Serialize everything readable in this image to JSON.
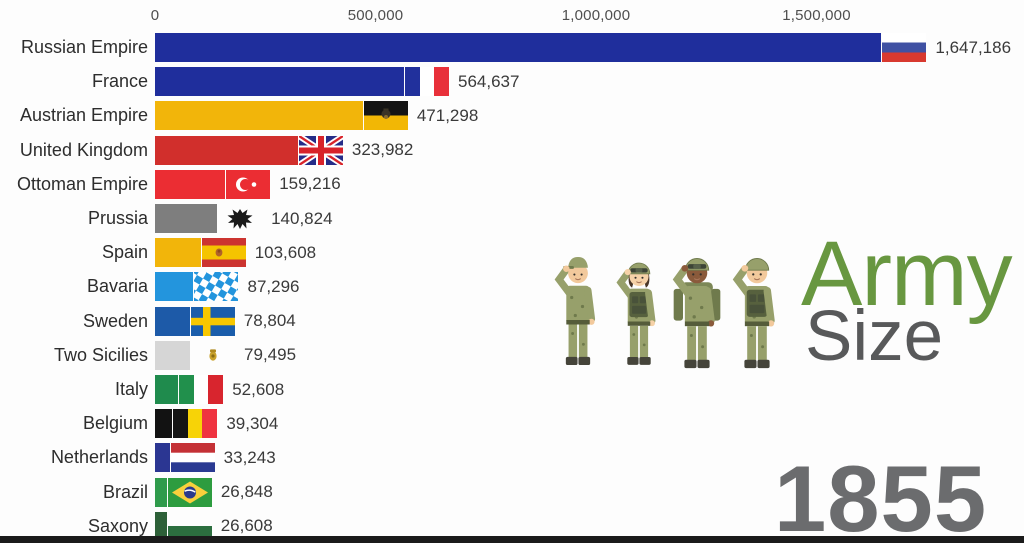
{
  "chart_data": {
    "type": "bar",
    "orientation": "horizontal",
    "title": "Army Size",
    "year": "1855",
    "grid": false,
    "legend": false,
    "x_axis": {
      "tick_values": [
        0,
        500000,
        1000000,
        1500000
      ],
      "tick_labels": [
        "0",
        "500,000",
        "1,000,000",
        "1,500,000"
      ],
      "range": [
        0,
        1970000
      ]
    },
    "categories": [
      "Russian Empire",
      "France",
      "Austrian Empire",
      "United Kingdom",
      "Ottoman Empire",
      "Prussia",
      "Spain",
      "Bavaria",
      "Sweden",
      "Two Sicilies",
      "Italy",
      "Belgium",
      "Netherlands",
      "Brazil",
      "Saxony"
    ],
    "values": [
      1647186,
      564637,
      471298,
      323982,
      159216,
      140824,
      103608,
      87296,
      78804,
      79495,
      52608,
      39304,
      33243,
      26848,
      26608
    ],
    "value_labels": [
      "1,647,186",
      "564,637",
      "471,298",
      "323,982",
      "159,216",
      "140,824",
      "103,608",
      "87,296",
      "78,804",
      "79,495",
      "52,608",
      "39,304",
      "33,243",
      "26,848",
      "26,608"
    ],
    "bar_colors": [
      "#1f2e9c",
      "#1f2e9c",
      "#f2b50a",
      "#d12f2c",
      "#eb2d33",
      "#7e7e7e",
      "#f2b50a",
      "#2395dd",
      "#1d5aa8",
      "#d6d6d6",
      "#1f8b4d",
      "#121212",
      "#2b3692",
      "#2f9b4b",
      "#2d6038"
    ],
    "flag_icons": [
      "flag-russia-icon",
      "flag-france-icon",
      "flag-austria-icon",
      "flag-uk-icon",
      "flag-ottoman-icon",
      "flag-prussia-icon",
      "flag-spain-icon",
      "flag-bavaria-icon",
      "flag-sweden-icon",
      "flag-two-sicilies-icon",
      "flag-italy-icon",
      "flag-belgium-icon",
      "flag-netherlands-icon",
      "flag-brazil-icon",
      "flag-saxony-icon"
    ]
  },
  "branding": {
    "title_word1": "Army",
    "title_word1_color": "#689740",
    "title_word2": "Size",
    "title_word2_color": "#58595a",
    "year": "1855",
    "year_color": "#6b6c6e"
  },
  "icons": {
    "soldiers": [
      "soldier-cap-male-icon",
      "soldier-helmet-female-icon",
      "soldier-backpack-male-icon",
      "soldier-helmet-male-icon"
    ]
  }
}
